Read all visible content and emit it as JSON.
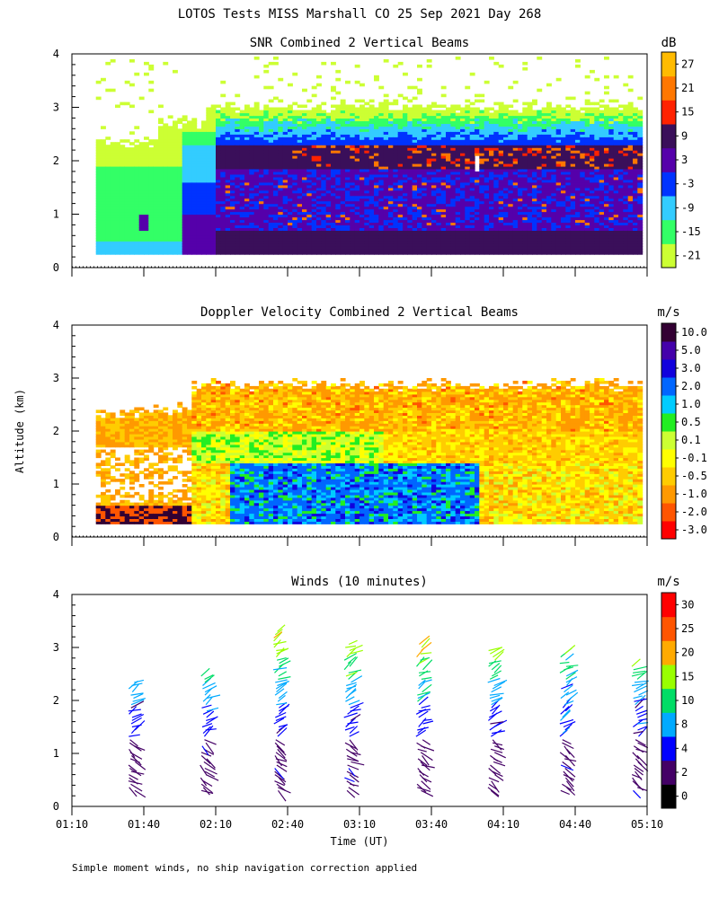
{
  "title": "LOTOS Tests MISS Marshall CO  25 Sep 2021 Day 268",
  "footnote": "Simple moment winds, no ship navigation correction applied",
  "colors": {
    "snr": [
      "#ccff33",
      "#33ff66",
      "#33ccff",
      "#0033ff",
      "#5500aa",
      "#3a0f5a",
      "#ff2200",
      "#ff7700",
      "#ffbb00"
    ],
    "vel": [
      "#ff0000",
      "#ff5500",
      "#ff9900",
      "#ffcc00",
      "#ffff00",
      "#ccff33",
      "#22ee22",
      "#00ccff",
      "#0066ff",
      "#1100dd",
      "#4400aa",
      "#330033"
    ],
    "wind": [
      "#000000",
      "#440066",
      "#0000ff",
      "#00aaff",
      "#00dd66",
      "#99ff00",
      "#ffaa00",
      "#ff5500",
      "#ff0000"
    ]
  },
  "chart_data": [
    {
      "type": "heatmap",
      "title": "SNR Combined 2 Vertical Beams",
      "unit": "dB",
      "ylabel": "",
      "ylim": [
        0,
        4
      ],
      "yticks": [
        "0",
        "1",
        "2",
        "3",
        "4"
      ],
      "xlim": [
        "01:10",
        "05:10"
      ],
      "colorbar_ticks": [
        "-21",
        "-15",
        "-9",
        "-3",
        "3",
        "9",
        "15",
        "21",
        "27"
      ],
      "colorbar_range": [
        -24,
        30
      ],
      "description_levels": {
        "below_1km": "3 to 9",
        "1_to_2km": "-3 to 9",
        "near_2km": "9 to 21",
        "above_2.5km": "-21 to -9"
      }
    },
    {
      "type": "heatmap",
      "title": "Doppler Velocity Combined 2 Vertical Beams",
      "unit": "m/s",
      "ylabel": "Altitude (km)",
      "ylim": [
        0,
        4
      ],
      "yticks": [
        "0",
        "1",
        "2",
        "3",
        "4"
      ],
      "xlim": [
        "01:10",
        "05:10"
      ],
      "colorbar_ticks": [
        "-3.0",
        "-2.0",
        "-1.0",
        "-0.5",
        "-0.1",
        "0.1",
        "0.5",
        "1.0",
        "2.0",
        "3.0",
        "5.0",
        "10.0"
      ]
    },
    {
      "type": "scatter",
      "title": "Winds (10 minutes)",
      "unit": "m/s",
      "xlabel": "Time (UT)",
      "ylim": [
        0,
        4
      ],
      "yticks": [
        "0",
        "1",
        "2",
        "3",
        "4"
      ],
      "xticks": [
        "01:10",
        "01:40",
        "02:10",
        "02:40",
        "03:10",
        "03:40",
        "04:10",
        "04:40",
        "05:10"
      ],
      "colorbar_ticks": [
        "0",
        "2",
        "4",
        "8",
        "10",
        "15",
        "20",
        "25",
        "30"
      ],
      "profile_times_min": [
        95,
        125,
        155,
        185,
        215,
        245,
        275,
        305
      ],
      "profile_tops_km": [
        2.4,
        2.5,
        3.35,
        3.1,
        3.1,
        3.0,
        2.9,
        2.7
      ]
    }
  ]
}
